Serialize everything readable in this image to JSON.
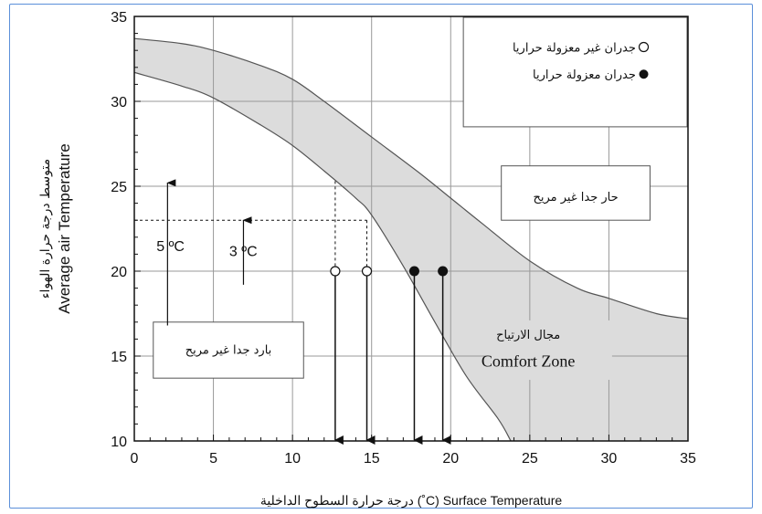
{
  "chart_data": {
    "type": "area",
    "xlabel": "درجة حرارة السطوح الداخلية (˚C) Surface Temperature",
    "ylabel_ar": "متوسط درجة حرارة الهواء",
    "ylabel_en": "Average air Temperature",
    "xlim": [
      0,
      35
    ],
    "ylim": [
      10,
      35
    ],
    "x_ticks": [
      "0",
      "5",
      "10",
      "15",
      "20",
      "25",
      "30",
      "35"
    ],
    "y_ticks": [
      "10",
      "15",
      "20",
      "25",
      "30",
      "35"
    ],
    "grid": true,
    "series": [
      {
        "role": "upper_boundary",
        "points": [
          [
            0,
            33.7
          ],
          [
            3,
            33.4
          ],
          [
            5,
            33.0
          ],
          [
            8,
            32.1
          ],
          [
            10,
            31.3
          ],
          [
            12,
            30.0
          ],
          [
            15,
            27.9
          ],
          [
            18,
            25.8
          ],
          [
            20,
            24.3
          ],
          [
            22,
            22.8
          ],
          [
            25,
            20.6
          ],
          [
            28,
            19.0
          ],
          [
            30,
            18.4
          ],
          [
            33,
            17.5
          ],
          [
            35,
            17.2
          ]
        ]
      },
      {
        "role": "lower_boundary",
        "points": [
          [
            0,
            31.7
          ],
          [
            3,
            30.9
          ],
          [
            5,
            30.2
          ],
          [
            8,
            28.6
          ],
          [
            10,
            27.4
          ],
          [
            12,
            25.9
          ],
          [
            14,
            24.3
          ],
          [
            15,
            23.3
          ],
          [
            17,
            20.3
          ],
          [
            19,
            17.0
          ],
          [
            21,
            13.8
          ],
          [
            23,
            11.3
          ],
          [
            23.8,
            10.0
          ]
        ]
      }
    ],
    "points_uninsulated": [
      [
        12.7,
        20
      ],
      [
        14.7,
        20
      ]
    ],
    "points_insulated": [
      [
        17.7,
        20
      ],
      [
        19.5,
        20
      ]
    ],
    "dashed_reference_y": 23,
    "annotations": {
      "delta_5": "5 ºC",
      "delta_3": "3 ºC"
    },
    "legend": {
      "open_label": "جدران غير معزولة حراريا",
      "filled_label": "جدران معزولة حراريا",
      "placement": "top-right"
    },
    "zones": {
      "hot": "حار جدا غير مريح",
      "cold": "بارد جدا غير مريح",
      "comfort_ar": "مجال الارتياح",
      "comfort_en": "Comfort Zone"
    }
  }
}
